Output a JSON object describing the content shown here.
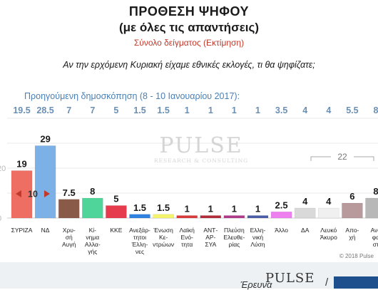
{
  "header": {
    "title_line1": "ΠΡΟΘΕΣΗ ΨΗΦΟΥ",
    "title_line2": "(με όλες τις απαντήσεις)",
    "subtitle": "Σύνολο δείγματος   (Εκτίμηση)",
    "question": "Αν την ερχόμενη Κυριακή είχαμε εθνικές εκλογές, τι θα ψηφίζατε;"
  },
  "chart_data": {
    "type": "bar",
    "title": "ΠΡΟΘΕΣΗ ΨΗΦΟΥ",
    "subtitle": "(με όλες τις απαντήσεις)",
    "xlabel": "",
    "ylabel": "",
    "ylim": [
      0,
      40
    ],
    "y_ticks_visible": [
      "0",
      "20"
    ],
    "categories": [
      [
        "ΣΥΡΙΖΑ"
      ],
      [
        "ΝΔ"
      ],
      [
        "Χρυ-",
        "σή",
        "Αυγή"
      ],
      [
        "Κί-",
        "νημα",
        "Αλλα-",
        "γής"
      ],
      [
        "ΚΚΕ"
      ],
      [
        "Ανεξάρ-",
        "τητοι",
        "Έλλη-",
        "νες"
      ],
      [
        "Ένωση",
        "Κε-",
        "ντρώων"
      ],
      [
        "Λαϊκή",
        "Ενό-",
        "τητα"
      ],
      [
        "ΑΝΤ-",
        "ΑΡ-",
        "ΣΥΑ"
      ],
      [
        "Πλεύση",
        "Ελευθε-",
        "ρίας"
      ],
      [
        "Ελλη-",
        "νική",
        "Λύση"
      ],
      [
        "Άλλο"
      ],
      [
        "ΔΑ"
      ],
      [
        "Λευκό",
        "Άκυρο"
      ],
      [
        "Απο-",
        "χή"
      ],
      [
        "Ανα",
        "φα",
        "στ"
      ]
    ],
    "values": [
      19,
      29,
      7.5,
      8,
      5,
      1.5,
      1.5,
      1,
      1,
      1,
      1,
      2.5,
      4,
      4,
      6,
      8
    ],
    "value_labels": [
      "19",
      "29",
      "7.5",
      "8",
      "5",
      "1.5",
      "1.5",
      "1",
      "1",
      "1",
      "1",
      "2.5",
      "4",
      "4",
      "6",
      "8"
    ],
    "colors": [
      "#ef6e63",
      "#7cb1e8",
      "#8a5a48",
      "#4fd49a",
      "#e63b4c",
      "#2f82e0",
      "#f4f46a",
      "#d93a3a",
      "#b22c3a",
      "#b03a8a",
      "#4a5ea8",
      "#ee7fee",
      "#d9d9d9",
      "#f0f0f0",
      "#b8999c",
      "#b8b8b8"
    ],
    "previous_survey": {
      "label": "Προηγούμενη δημοσκόπηση (8 - 10 Ιανουαρίου 2017):",
      "values": [
        "19.5",
        "28.5",
        "7",
        "7",
        "5",
        "1.5",
        "1.5",
        "1",
        "1",
        "1",
        "1",
        "3.5",
        "4",
        "4",
        "5.5",
        "8"
      ]
    },
    "gap_annotation": "10",
    "group_annotation": "22"
  },
  "watermark": {
    "main": "PULSE",
    "sub": "RESEARCH & CONSULTING"
  },
  "footer": {
    "copyright": "© 2018 Pulse",
    "text": "Έρευνα",
    "logo": "PULSE",
    "separator": "/"
  }
}
